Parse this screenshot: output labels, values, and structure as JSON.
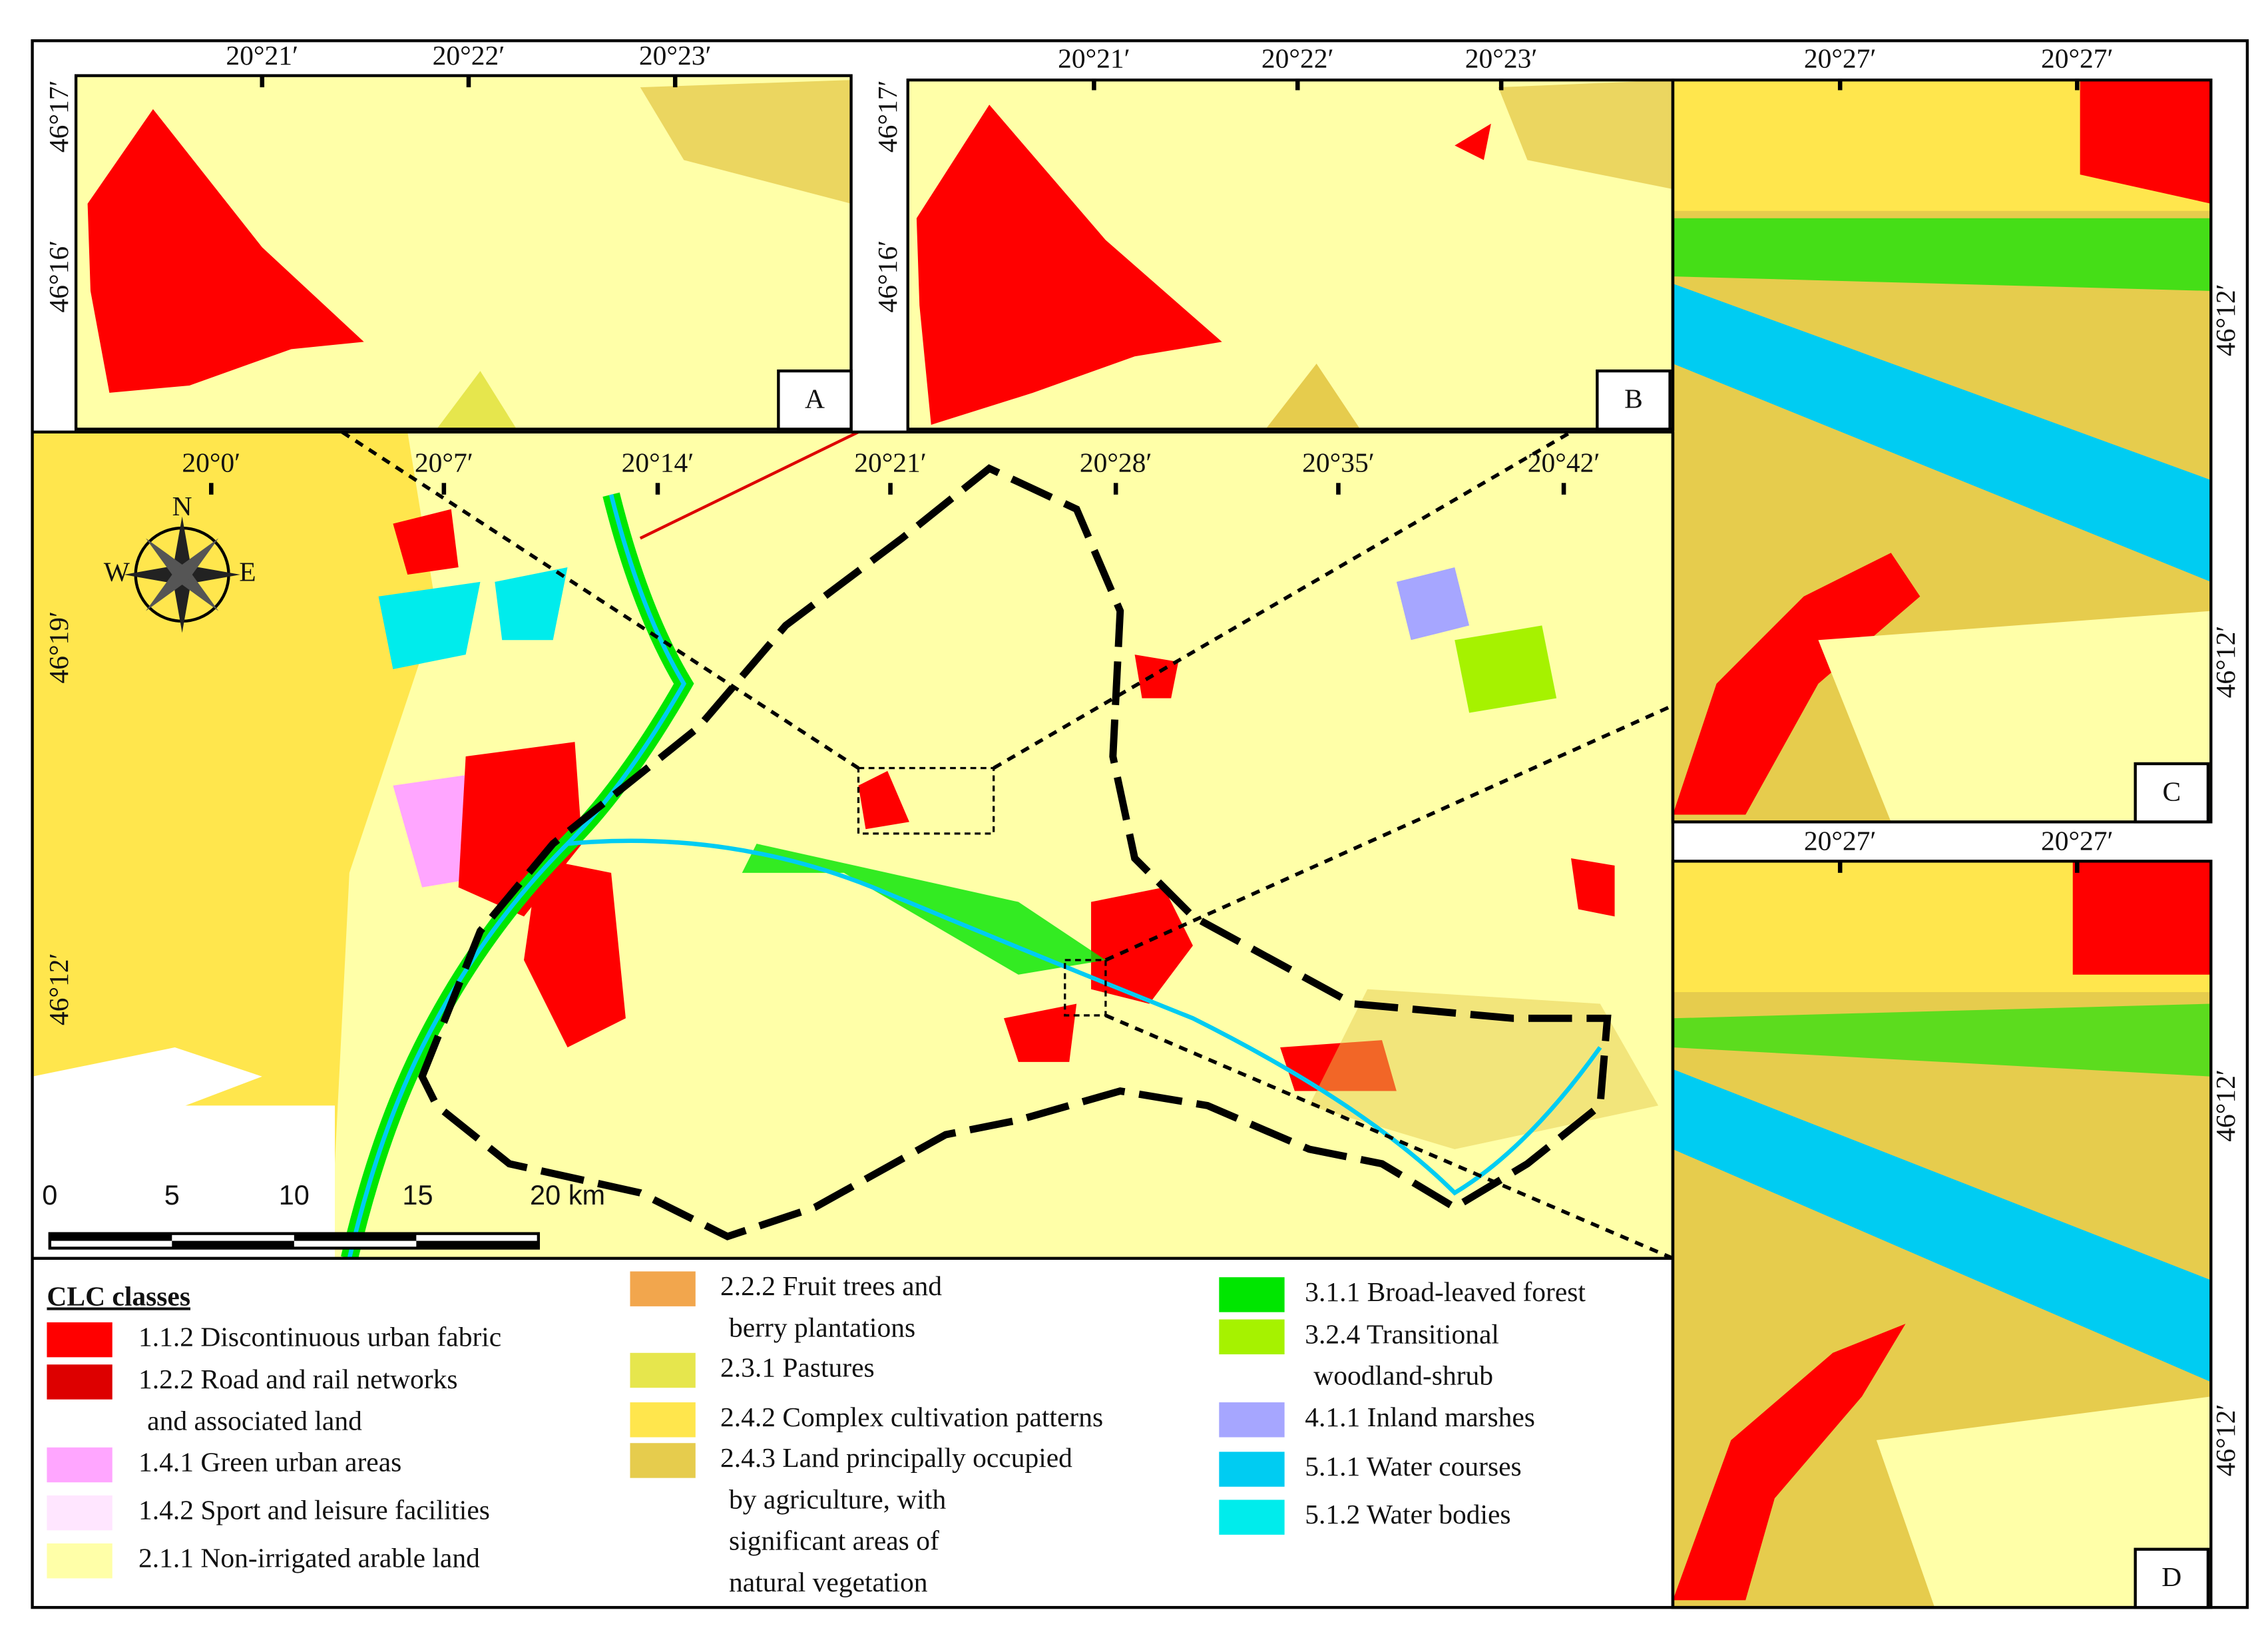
{
  "panels": {
    "A": {
      "label": "A",
      "x_labels": [
        "20°21′",
        "20°22′",
        "20°23′"
      ],
      "y_labels": [
        "46°17′",
        "46°16′"
      ]
    },
    "B": {
      "label": "B",
      "x_labels": [
        "20°21′",
        "20°22′",
        "20°23′"
      ],
      "y_labels": [
        "46°17′",
        "46°16′"
      ]
    },
    "C": {
      "label": "C",
      "x_labels": [
        "20°27′",
        "20°27′"
      ],
      "y_labels": [
        "46°12′",
        "46°12′"
      ]
    },
    "D": {
      "label": "D",
      "x_labels": [
        "20°27′",
        "20°27′"
      ],
      "y_labels": [
        "46°12′",
        "46°12′"
      ]
    },
    "main": {
      "x_labels": [
        "20°0′",
        "20°7′",
        "20°14′",
        "20°21′",
        "20°28′",
        "20°35′",
        "20°42′"
      ],
      "y_labels": [
        "46°19′",
        "46°12′"
      ],
      "scale_labels": [
        "0",
        "5",
        "10",
        "15",
        "20 km"
      ],
      "compass": [
        "N",
        "W",
        "E"
      ]
    }
  },
  "legend": {
    "title": "CLC classes",
    "items": [
      {
        "lines": [
          "1.1.2 Discontinuous urban fabric"
        ],
        "color": "#ff0000"
      },
      {
        "lines": [
          "1.2.2 Road and rail networks",
          "and associated land"
        ],
        "color": "#dd0000"
      },
      {
        "lines": [
          "1.4.1 Green urban areas"
        ],
        "color": "#ffa6ff"
      },
      {
        "lines": [
          "1.4.2 Sport and leisure facilities"
        ],
        "color": "#ffe6ff"
      },
      {
        "lines": [
          "2.1.1 Non-irrigated arable land"
        ],
        "color": "#ffffa8"
      },
      {
        "lines": [
          "2.2.2 Fruit trees and",
          "berry plantations"
        ],
        "color": "#f2a64d"
      },
      {
        "lines": [
          "2.3.1 Pastures"
        ],
        "color": "#e6e64d"
      },
      {
        "lines": [
          "2.4.2 Complex cultivation patterns"
        ],
        "color": "#ffe64d"
      },
      {
        "lines": [
          "2.4.3 Land principally occupied",
          "by agriculture, with",
          "significant areas of",
          "natural vegetation"
        ],
        "color": "#e6cc4d"
      },
      {
        "lines": [
          "3.1.1 Broad-leaved forest"
        ],
        "color": "#00e600"
      },
      {
        "lines": [
          "3.2.4 Transitional",
          "woodland-shrub"
        ],
        "color": "#a6f200"
      },
      {
        "lines": [
          "4.1.1 Inland marshes"
        ],
        "color": "#a6a6ff"
      },
      {
        "lines": [
          "5.1.1 Water courses"
        ],
        "color": "#00ccf2"
      },
      {
        "lines": [
          "5.1.2 Water bodies"
        ],
        "color": "#00ecec"
      }
    ]
  }
}
